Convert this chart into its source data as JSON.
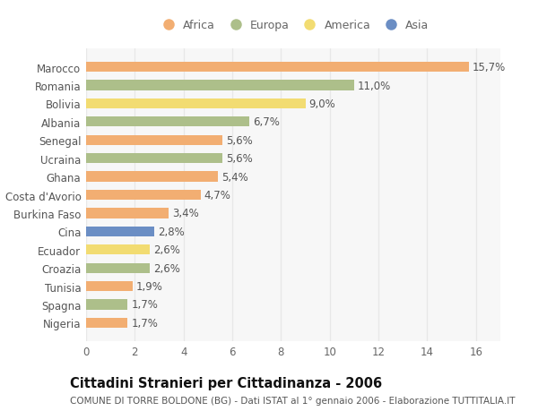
{
  "countries": [
    "Nigeria",
    "Spagna",
    "Tunisia",
    "Croazia",
    "Ecuador",
    "Cina",
    "Burkina Faso",
    "Costa d'Avorio",
    "Ghana",
    "Ucraina",
    "Senegal",
    "Albania",
    "Bolivia",
    "Romania",
    "Marocco"
  ],
  "values": [
    1.7,
    1.7,
    1.9,
    2.6,
    2.6,
    2.8,
    3.4,
    4.7,
    5.4,
    5.6,
    5.6,
    6.7,
    9.0,
    11.0,
    15.7
  ],
  "labels": [
    "1,7%",
    "1,7%",
    "1,9%",
    "2,6%",
    "2,6%",
    "2,8%",
    "3,4%",
    "4,7%",
    "5,4%",
    "5,6%",
    "5,6%",
    "6,7%",
    "9,0%",
    "11,0%",
    "15,7%"
  ],
  "continents": [
    "Africa",
    "Europa",
    "Africa",
    "Europa",
    "America",
    "Asia",
    "Africa",
    "Africa",
    "Africa",
    "Europa",
    "Africa",
    "Europa",
    "America",
    "Europa",
    "Africa"
  ],
  "colors": {
    "Africa": "#F2AE72",
    "Europa": "#ADBF8A",
    "America": "#F2DC72",
    "Asia": "#6B8EC4"
  },
  "legend_order": [
    "Africa",
    "Europa",
    "America",
    "Asia"
  ],
  "legend_colors": [
    "#F2AE72",
    "#ADBF8A",
    "#F2DC72",
    "#6B8EC4"
  ],
  "xlim": [
    0,
    17.0
  ],
  "xticks": [
    0,
    2,
    4,
    6,
    8,
    10,
    12,
    14,
    16
  ],
  "title": "Cittadini Stranieri per Cittadinanza - 2006",
  "subtitle": "COMUNE DI TORRE BOLDONE (BG) - Dati ISTAT al 1° gennaio 2006 - Elaborazione TUTTITALIA.IT",
  "background_color": "#ffffff",
  "plot_bg_color": "#f7f7f7",
  "grid_color": "#e8e8e8",
  "bar_height": 0.55,
  "label_fontsize": 8.5,
  "tick_fontsize": 8.5,
  "title_fontsize": 10.5,
  "subtitle_fontsize": 7.5
}
